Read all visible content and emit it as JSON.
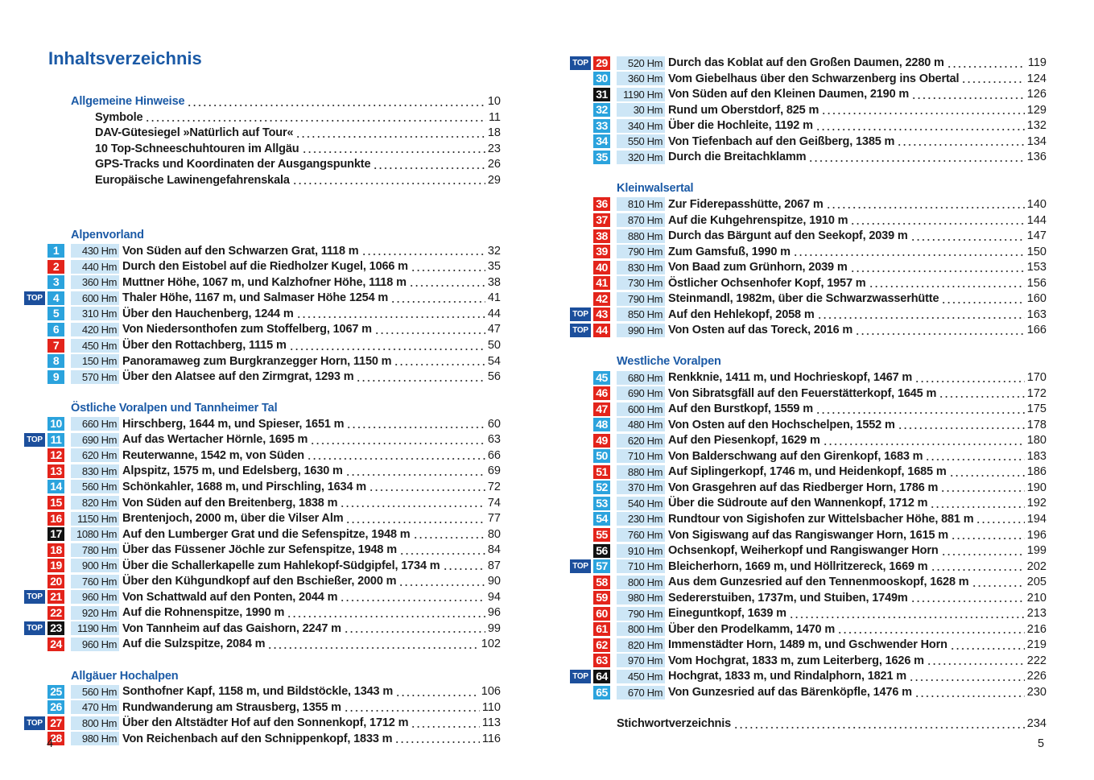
{
  "left_page": {
    "title": "Inhaltsverzeichnis",
    "page_number": 4,
    "sections": [
      {
        "heading": "Allgemeine Hinweise",
        "page": 10,
        "items": [
          {
            "title": "Symbole",
            "page": 11
          },
          {
            "title": "DAV-Gütesiegel »Natürlich auf Tour«",
            "page": 18
          },
          {
            "title": "10 Top-Schneeschuhtouren im Allgäu",
            "page": 23
          },
          {
            "title": "GPS-Tracks und Koordinaten der Ausgangspunkte",
            "page": 26
          },
          {
            "title": "Europäische Lawinengefahrenskala",
            "page": 29
          }
        ]
      },
      {
        "heading": "Alpenvorland",
        "tours": [
          {
            "number": 1,
            "color": "#2ba3dd",
            "hm": "430 Hm",
            "title": "Von Süden auf den Schwarzen Grat, 1118 m",
            "page": 32
          },
          {
            "number": 2,
            "color": "#e3241b",
            "hm": "440 Hm",
            "title": "Durch den Eistobel auf die Riedholzer Kugel, 1066 m",
            "page": 35
          },
          {
            "number": 3,
            "color": "#2ba3dd",
            "hm": "360 Hm",
            "title": "Muttner Höhe, 1067 m, und Kalzhofner Höhe, 1118 m",
            "page": 38
          },
          {
            "number": 4,
            "color": "#2ba3dd",
            "badge": "TOP",
            "hm": "600 Hm",
            "title": "Thaler Höhe, 1167 m, und Salmaser Höhe 1254 m",
            "page": 41
          },
          {
            "number": 5,
            "color": "#2ba3dd",
            "hm": "310 Hm",
            "title": "Über den Hauchenberg, 1244 m",
            "page": 44
          },
          {
            "number": 6,
            "color": "#2ba3dd",
            "hm": "420 Hm",
            "title": "Von Niedersonthofen zum Stoffelberg, 1067 m",
            "page": 47
          },
          {
            "number": 7,
            "color": "#e3241b",
            "hm": "450 Hm",
            "title": "Über den Rottachberg, 1115 m",
            "page": 50
          },
          {
            "number": 8,
            "color": "#2ba3dd",
            "hm": "150 Hm",
            "title": "Panoramaweg zum Burgkranzegger Horn, 1150 m",
            "page": 54
          },
          {
            "number": 9,
            "color": "#2ba3dd",
            "hm": "570 Hm",
            "title": "Über den Alatsee auf den Zirmgrat, 1293 m",
            "page": 56
          }
        ]
      },
      {
        "heading": "Östliche Voralpen und Tannheimer Tal",
        "tours": [
          {
            "number": 10,
            "color": "#2ba3dd",
            "hm": "660 Hm",
            "title": "Hirschberg, 1644 m, und Spieser, 1651 m",
            "page": 60
          },
          {
            "number": 11,
            "color": "#2ba3dd",
            "badge": "TOP",
            "hm": "690 Hm",
            "title": "Auf das Wertacher Hörnle, 1695 m",
            "page": 63
          },
          {
            "number": 12,
            "color": "#e3241b",
            "hm": "620 Hm",
            "title": "Reuterwanne, 1542 m, von Süden",
            "page": 66
          },
          {
            "number": 13,
            "color": "#e3241b",
            "hm": "830 Hm",
            "title": "Alpspitz, 1575 m, und Edelsberg, 1630 m",
            "page": 69
          },
          {
            "number": 14,
            "color": "#2ba3dd",
            "hm": "560 Hm",
            "title": "Schönkahler, 1688 m, und Pirschling, 1634 m",
            "page": 72
          },
          {
            "number": 15,
            "color": "#e3241b",
            "hm": "820 Hm",
            "title": "Von Süden auf den Breitenberg, 1838 m",
            "page": 74
          },
          {
            "number": 16,
            "color": "#e3241b",
            "hm": "1150 Hm",
            "title": "Brentenjoch, 2000 m, über die Vilser Alm",
            "page": 77
          },
          {
            "number": 17,
            "color": "#111111",
            "hm": "1080 Hm",
            "title": "Auf den Lumberger Grat und die Sefenspitze, 1948 m",
            "page": 80
          },
          {
            "number": 18,
            "color": "#e3241b",
            "hm": "780 Hm",
            "title": "Über das Füssener Jöchle zur Sefenspitze, 1948 m",
            "page": 84
          },
          {
            "number": 19,
            "color": "#e3241b",
            "hm": "900 Hm",
            "title": "Über die Schallerkapelle zum Hahlekopf-Südgipfel, 1734 m",
            "page": 87
          },
          {
            "number": 20,
            "color": "#e3241b",
            "hm": "760 Hm",
            "title": "Über den Kühgundkopf auf den Bschießer, 2000 m",
            "page": 90
          },
          {
            "number": 21,
            "color": "#e3241b",
            "badge": "TOP",
            "hm": "960 Hm",
            "title": "Von Schattwald auf den Ponten, 2044 m",
            "page": 94
          },
          {
            "number": 22,
            "color": "#e3241b",
            "hm": "920 Hm",
            "title": "Auf die Rohnenspitze, 1990 m",
            "page": 96
          },
          {
            "number": 23,
            "color": "#111111",
            "badge": "TOP",
            "hm": "1190 Hm",
            "title": "Von Tannheim auf das Gaishorn, 2247 m",
            "page": 99
          },
          {
            "number": 24,
            "color": "#e3241b",
            "hm": "960 Hm",
            "title": "Auf die Sulzspitze, 2084 m",
            "page": 102
          }
        ]
      },
      {
        "heading": "Allgäuer Hochalpen",
        "tours": [
          {
            "number": 25,
            "color": "#2ba3dd",
            "hm": "560 Hm",
            "title": "Sonthofner Kapf, 1158 m, und Bildstöckle, 1343 m",
            "page": 106
          },
          {
            "number": 26,
            "color": "#2ba3dd",
            "hm": "470 Hm",
            "title": "Rundwanderung am Strausberg, 1355 m",
            "page": 110
          },
          {
            "number": 27,
            "color": "#e3241b",
            "badge": "TOP",
            "hm": "800 Hm",
            "title": "Über den Altstädter Hof auf den Sonnenkopf, 1712 m",
            "page": 113
          },
          {
            "number": 28,
            "color": "#e3241b",
            "hm": "980 Hm",
            "title": "Von Reichenbach auf den Schnippenkopf, 1833 m",
            "page": 116
          }
        ]
      }
    ]
  },
  "right_page": {
    "page_number": 5,
    "sections": [
      {
        "tours": [
          {
            "number": 29,
            "color": "#e3241b",
            "badge": "TOP",
            "hm": "520 Hm",
            "title": "Durch das Koblat auf den Großen Daumen, 2280 m",
            "page": 119
          },
          {
            "number": 30,
            "color": "#2ba3dd",
            "hm": "360 Hm",
            "title": "Vom Giebelhaus über den Schwarzenberg ins Obertal",
            "page": 124
          },
          {
            "number": 31,
            "color": "#111111",
            "hm": "1190 Hm",
            "title": "Von Süden auf den Kleinen Daumen, 2190 m",
            "page": 126
          },
          {
            "number": 32,
            "color": "#2ba3dd",
            "hm": "30 Hm",
            "title": "Rund um Oberstdorf, 825 m",
            "page": 129
          },
          {
            "number": 33,
            "color": "#2ba3dd",
            "hm": "340 Hm",
            "title": "Über die Hochleite, 1192 m",
            "page": 132
          },
          {
            "number": 34,
            "color": "#2ba3dd",
            "hm": "550 Hm",
            "title": "Von Tiefenbach auf den Geißberg, 1385 m",
            "page": 134
          },
          {
            "number": 35,
            "color": "#2ba3dd",
            "hm": "320 Hm",
            "title": "Durch die Breitachklamm",
            "page": 136
          }
        ]
      },
      {
        "heading": "Kleinwalsertal",
        "tours": [
          {
            "number": 36,
            "color": "#e3241b",
            "hm": "810 Hm",
            "title": "Zur Fiderepasshütte, 2067 m",
            "page": 140
          },
          {
            "number": 37,
            "color": "#e3241b",
            "hm": "870 Hm",
            "title": "Auf die Kuhgehrenspitze, 1910 m",
            "page": 144
          },
          {
            "number": 38,
            "color": "#e3241b",
            "hm": "880 Hm",
            "title": "Durch das Bärgunt auf den Seekopf, 2039 m",
            "page": 147
          },
          {
            "number": 39,
            "color": "#e3241b",
            "hm": "790 Hm",
            "title": "Zum Gamsfuß, 1990 m",
            "page": 150
          },
          {
            "number": 40,
            "color": "#e3241b",
            "hm": "830 Hm",
            "title": "Von Baad zum Grünhorn, 2039 m",
            "page": 153
          },
          {
            "number": 41,
            "color": "#e3241b",
            "hm": "730 Hm",
            "title": "Östlicher Ochsenhofer Kopf, 1957 m",
            "page": 156
          },
          {
            "number": 42,
            "color": "#e3241b",
            "hm": "790 Hm",
            "title": "Steinmandl, 1982m, über die Schwarzwasserhütte",
            "page": 160
          },
          {
            "number": 43,
            "color": "#e3241b",
            "badge": "TOP",
            "hm": "850 Hm",
            "title": "Auf den Hehlekopf, 2058 m",
            "page": 163
          },
          {
            "number": 44,
            "color": "#e3241b",
            "badge": "TOP",
            "hm": "990 Hm",
            "title": "Von Osten auf das Toreck, 2016 m",
            "page": 166
          }
        ]
      },
      {
        "heading": "Westliche Voralpen",
        "tours": [
          {
            "number": 45,
            "color": "#2ba3dd",
            "hm": "680 Hm",
            "title": "Renkknie, 1411 m, und Hochrieskopf, 1467 m",
            "page": 170
          },
          {
            "number": 46,
            "color": "#e3241b",
            "hm": "690 Hm",
            "title": "Von Sibratsgfäll auf den Feuerstätterkopf, 1645 m",
            "page": 172
          },
          {
            "number": 47,
            "color": "#e3241b",
            "hm": "600 Hm",
            "title": "Auf den Burstkopf, 1559 m",
            "page": 175
          },
          {
            "number": 48,
            "color": "#2ba3dd",
            "hm": "480 Hm",
            "title": "Von Osten auf den Hochschelpen, 1552 m",
            "page": 178
          },
          {
            "number": 49,
            "color": "#e3241b",
            "hm": "620 Hm",
            "title": "Auf den Piesenkopf, 1629 m",
            "page": 180
          },
          {
            "number": 50,
            "color": "#2ba3dd",
            "hm": "710 Hm",
            "title": "Von Balderschwang auf den Girenkopf, 1683 m",
            "page": 183
          },
          {
            "number": 51,
            "color": "#e3241b",
            "hm": "880 Hm",
            "title": "Auf Siplingerkopf, 1746 m, und Heidenkopf, 1685 m",
            "page": 186
          },
          {
            "number": 52,
            "color": "#2ba3dd",
            "hm": "370 Hm",
            "title": "Von Grasgehren auf das Riedberger Horn, 1786 m",
            "page": 190
          },
          {
            "number": 53,
            "color": "#2ba3dd",
            "hm": "540 Hm",
            "title": "Über die Südroute auf den Wannenkopf, 1712 m",
            "page": 192
          },
          {
            "number": 54,
            "color": "#2ba3dd",
            "hm": "230 Hm",
            "title": "Rundtour von Sigishofen zur Wittelsbacher Höhe, 881 m",
            "page": 194
          },
          {
            "number": 55,
            "color": "#e3241b",
            "hm": "760 Hm",
            "title": "Von Sigiswang auf das Rangiswanger Horn, 1615 m",
            "page": 196
          },
          {
            "number": 56,
            "color": "#111111",
            "hm": "910 Hm",
            "title": "Ochsenkopf, Weiherkopf und Rangiswanger Horn",
            "page": 199
          },
          {
            "number": 57,
            "color": "#2ba3dd",
            "badge": "TOP",
            "hm": "710 Hm",
            "title": "Bleicherhorn, 1669 m, und Höllritzereck, 1669 m",
            "page": 202
          },
          {
            "number": 58,
            "color": "#e3241b",
            "hm": "800 Hm",
            "title": "Aus dem Gunzesried auf den Tennenmooskopf, 1628 m",
            "page": 205
          },
          {
            "number": 59,
            "color": "#e3241b",
            "hm": "980 Hm",
            "title": "Sedererstuiben, 1737m, und Stuiben, 1749m",
            "page": 210
          },
          {
            "number": 60,
            "color": "#e3241b",
            "hm": "790 Hm",
            "title": "Eineguntkopf, 1639 m",
            "page": 213
          },
          {
            "number": 61,
            "color": "#e3241b",
            "hm": "800 Hm",
            "title": "Über den Prodelkamm, 1470 m",
            "page": 216
          },
          {
            "number": 62,
            "color": "#e3241b",
            "hm": "820 Hm",
            "title": "Immenstädter Horn, 1489 m, und Gschwender Horn",
            "page": 219
          },
          {
            "number": 63,
            "color": "#e3241b",
            "hm": "970 Hm",
            "title": "Vom Hochgrat, 1833 m, zum Leiterberg, 1626 m",
            "page": 222
          },
          {
            "number": 64,
            "color": "#111111",
            "badge": "TOP",
            "hm": "450 Hm",
            "title": "Hochgrat, 1833 m, und Rindalphorn, 1821 m",
            "page": 226
          },
          {
            "number": 65,
            "color": "#2ba3dd",
            "hm": "670 Hm",
            "title": "Von Gunzesried auf das Bärenköpfle, 1476 m",
            "page": 230
          }
        ]
      }
    ],
    "index": {
      "title": "Stichwortverzeichnis",
      "page": 234
    }
  }
}
